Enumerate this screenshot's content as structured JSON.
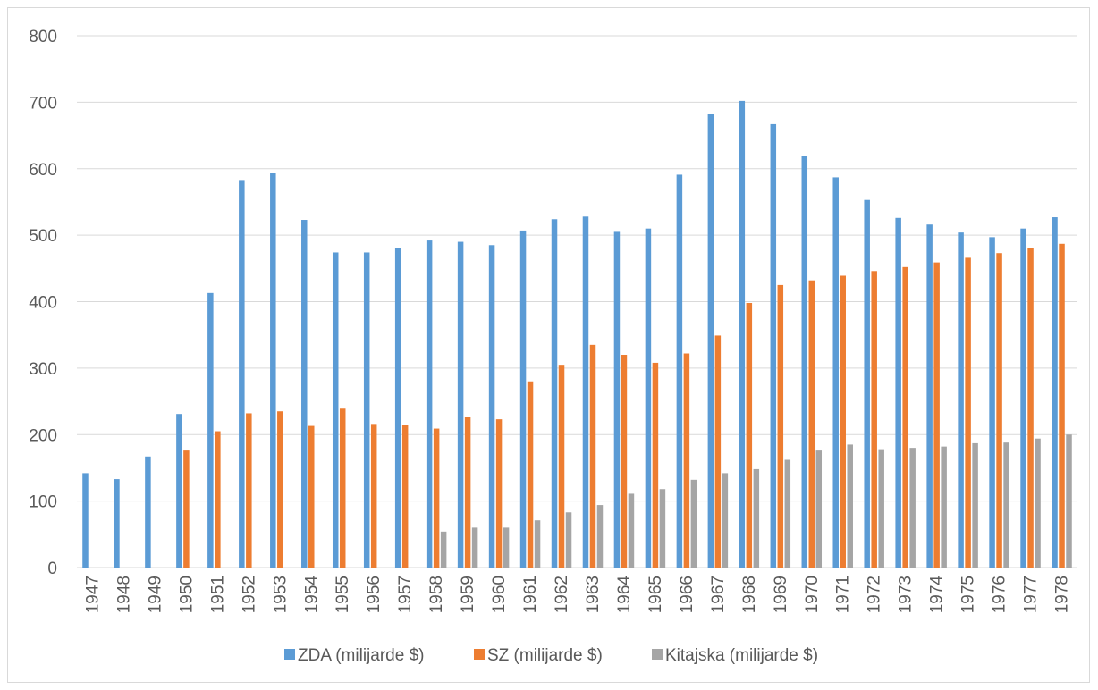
{
  "chart_data": {
    "type": "bar",
    "categories": [
      "1947",
      "1948",
      "1949",
      "1950",
      "1951",
      "1952",
      "1953",
      "1954",
      "1955",
      "1956",
      "1957",
      "1958",
      "1959",
      "1960",
      "1961",
      "1962",
      "1963",
      "1964",
      "1965",
      "1966",
      "1967",
      "1968",
      "1969",
      "1970",
      "1971",
      "1972",
      "1973",
      "1974",
      "1975",
      "1976",
      "1977",
      "1978"
    ],
    "series": [
      {
        "name": "ZDA (milijarde $)",
        "color": "#5b9bd5",
        "values": [
          142,
          133,
          167,
          231,
          413,
          583,
          593,
          523,
          474,
          474,
          481,
          492,
          490,
          485,
          507,
          524,
          528,
          505,
          510,
          591,
          683,
          702,
          667,
          619,
          587,
          553,
          526,
          516,
          504,
          497,
          510,
          527
        ]
      },
      {
        "name": "SZ (milijarde $)",
        "color": "#ed7d31",
        "values": [
          null,
          null,
          null,
          176,
          205,
          232,
          235,
          213,
          239,
          216,
          214,
          209,
          226,
          223,
          280,
          305,
          335,
          320,
          308,
          322,
          349,
          398,
          425,
          432,
          439,
          446,
          452,
          459,
          466,
          473,
          480,
          487
        ]
      },
      {
        "name": "Kitajska (milijarde $)",
        "color": "#a5a5a5",
        "values": [
          null,
          null,
          null,
          null,
          null,
          null,
          null,
          null,
          null,
          null,
          null,
          54,
          60,
          60,
          71,
          83,
          94,
          111,
          118,
          132,
          142,
          148,
          162,
          176,
          185,
          178,
          180,
          182,
          187,
          188,
          194,
          200
        ]
      }
    ],
    "y_ticks": [
      "0",
      "100",
      "200",
      "300",
      "400",
      "500",
      "600",
      "700",
      "800"
    ],
    "ylim": [
      0,
      800
    ],
    "grid": "horizontal",
    "legend_position": "bottom",
    "gridline_color": "#d9d9d9"
  }
}
